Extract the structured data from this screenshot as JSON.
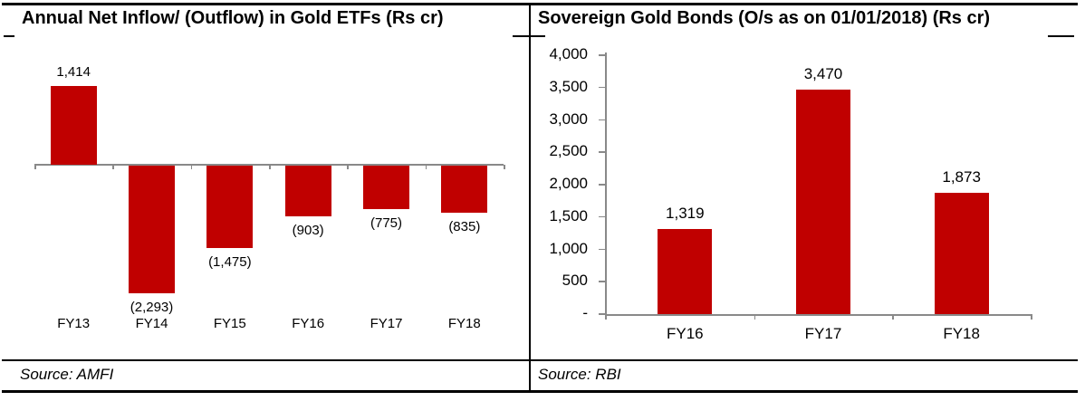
{
  "panels": [
    {
      "title": "Annual Net Inflow/ (Outflow) in Gold ETFs (Rs cr)",
      "source": "Source: AMFI"
    },
    {
      "title": "Sovereign Gold Bonds (O/s as on 01/01/2018) (Rs cr)",
      "source": "Source: RBI"
    }
  ],
  "chart_data": [
    {
      "type": "bar",
      "title": "Annual Net Inflow/ (Outflow) in Gold ETFs (Rs cr)",
      "categories": [
        "FY13",
        "FY14",
        "FY15",
        "FY16",
        "FY17",
        "FY18"
      ],
      "values": [
        1414,
        -2293,
        -1475,
        -903,
        -775,
        -835
      ],
      "value_labels": [
        "1,414",
        "(2,293)",
        "(1,475)",
        "(903)",
        "(775)",
        "(835)"
      ],
      "ylim": [
        -2400,
        1500
      ],
      "xlabel": "",
      "ylabel": "",
      "grid": false,
      "legend": "none",
      "bar_color": "#c00000",
      "axis_color": "#898989",
      "source": "Source: AMFI"
    },
    {
      "type": "bar",
      "title": "Sovereign Gold Bonds (O/s as on 01/01/2018) (Rs cr)",
      "categories": [
        "FY16",
        "FY17",
        "FY18"
      ],
      "values": [
        1319,
        3470,
        1873
      ],
      "value_labels": [
        "1,319",
        "3,470",
        "1,873"
      ],
      "y_tick_labels": [
        "4,000",
        "3,500",
        "3,000",
        "2,500",
        "2,000",
        "1,500",
        "1,000",
        "500",
        "-"
      ],
      "y_tick_values": [
        4000,
        3500,
        3000,
        2500,
        2000,
        1500,
        1000,
        500,
        0
      ],
      "ylim": [
        0,
        4000
      ],
      "xlabel": "",
      "ylabel": "",
      "grid": false,
      "legend": "none",
      "bar_color": "#c00000",
      "axis_color": "#898989",
      "source": "Source: RBI"
    }
  ]
}
